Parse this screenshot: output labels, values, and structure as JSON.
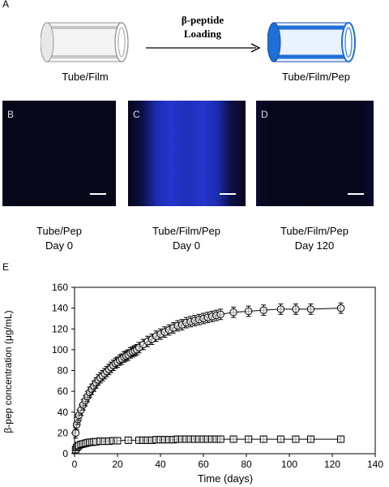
{
  "panels": {
    "a": {
      "letter": "A",
      "tube_left_label": "Tube/Film",
      "tube_right_label": "Tube/Film/Pep",
      "arrow_line1": "β-peptide",
      "arrow_line2": "Loading"
    },
    "b": {
      "letter": "B",
      "line1": "Tube/Pep",
      "line2": "Day 0"
    },
    "c": {
      "letter": "C",
      "line1": "Tube/Film/Pep",
      "line2": "Day 0"
    },
    "d": {
      "letter": "D",
      "line1": "Tube/Film/Pep",
      "line2": "Day  120"
    },
    "e": {
      "letter": "E"
    }
  },
  "colors": {
    "tube_gray": "#b8b8b8",
    "tube_blue": "#1f6fd6",
    "micro_dark": "#07071a",
    "micro_blue": "#2030c8"
  },
  "chart_data": {
    "type": "scatter",
    "xlabel": "Time (days)",
    "ylabel": "β-pep concentration (μg/mL)",
    "xlim": [
      0,
      140
    ],
    "ylim": [
      0,
      160
    ],
    "xticks": [
      0,
      20,
      40,
      60,
      80,
      100,
      120,
      140
    ],
    "yticks": [
      0,
      20,
      40,
      60,
      80,
      100,
      120,
      140,
      160
    ],
    "grid": false,
    "series": [
      {
        "marker": "circle",
        "x": [
          0.5,
          1,
          1.5,
          2,
          3,
          4,
          5,
          6,
          7,
          8,
          9,
          10,
          11,
          12,
          13,
          14,
          15,
          16,
          17,
          18,
          19,
          20,
          21,
          22,
          23,
          24,
          25,
          26,
          27,
          28,
          29,
          30,
          32,
          34,
          36,
          38,
          40,
          42,
          44,
          46,
          48,
          50,
          52,
          54,
          56,
          58,
          60,
          62,
          64,
          66,
          68,
          74,
          81,
          88,
          96,
          103,
          110,
          124
        ],
        "y": [
          20,
          28,
          33,
          37,
          42,
          47,
          51,
          55,
          59,
          62,
          65,
          68,
          71,
          73,
          75,
          77,
          79,
          81,
          83,
          85,
          87,
          88,
          90,
          91,
          93,
          94,
          95,
          97,
          98,
          99,
          100,
          102,
          105,
          108,
          110,
          113,
          115,
          117,
          119,
          121,
          123,
          124,
          126,
          127,
          128,
          129,
          130,
          131,
          132,
          133,
          134,
          136,
          137,
          138,
          139,
          139,
          139,
          140
        ],
        "err": 5
      },
      {
        "marker": "square",
        "x": [
          0.5,
          1,
          1.5,
          2,
          3,
          4,
          5,
          6,
          7,
          8,
          9,
          10,
          12,
          14,
          16,
          18,
          20,
          25,
          30,
          32,
          34,
          36,
          38,
          40,
          42,
          44,
          46,
          48,
          50,
          52,
          54,
          56,
          58,
          60,
          62,
          64,
          66,
          68,
          74,
          81,
          88,
          96,
          103,
          110,
          124
        ],
        "y": [
          4,
          6,
          7,
          8,
          9,
          9.5,
          10,
          10.5,
          11,
          11,
          11.5,
          11.5,
          12,
          12,
          12,
          12.5,
          12.5,
          13,
          13,
          13,
          13,
          13,
          13.5,
          13.5,
          13.5,
          13.5,
          13.5,
          14,
          14,
          14,
          14,
          14,
          14,
          14,
          14,
          14,
          14,
          14,
          14,
          14,
          14,
          14,
          14,
          14,
          14
        ],
        "err": 3
      }
    ]
  }
}
